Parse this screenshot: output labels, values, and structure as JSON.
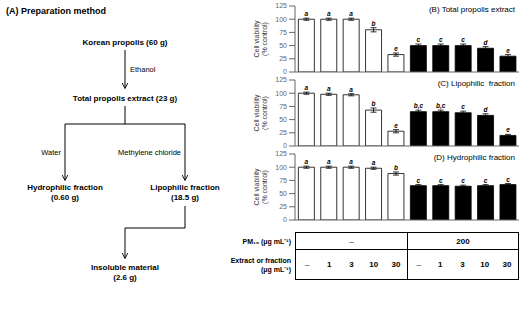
{
  "chart_data": [
    {
      "type": "flowchart",
      "title": "(A) Preparation method",
      "nodes": [
        "Korean propolis (60 g)",
        "Total propolis extract (23 g)",
        "Hydrophilic fraction\n(0.60 g)",
        "Lipophilic fraction\n(18.5 g)",
        "Insoluble material\n(2.6 g)"
      ],
      "edge_labels": [
        "Ethanol",
        "Water",
        "Methylene chloride"
      ]
    },
    {
      "type": "bar",
      "title": "(B) Total propolis extract",
      "ylabel": "Cell viability\n(% control)",
      "categories": [
        null,
        null,
        null,
        null,
        null,
        null,
        null,
        null,
        null,
        null
      ],
      "values": [
        100,
        100,
        100,
        80,
        33,
        50,
        50,
        50,
        45,
        30
      ],
      "errors": [
        2,
        2,
        2,
        4,
        3,
        3,
        3,
        3,
        3,
        3
      ],
      "annotations": [
        "a",
        "a",
        "a",
        "b",
        "e",
        "c",
        "c",
        "c",
        "d",
        "e"
      ],
      "colors": [
        "#ffffff",
        "#ffffff",
        "#ffffff",
        "#ffffff",
        "#ffffff",
        "#000000",
        "#000000",
        "#000000",
        "#000000",
        "#000000"
      ],
      "ylim": [
        0,
        125
      ],
      "yticks": [
        0,
        25,
        50,
        75,
        100,
        125
      ],
      "grid": false
    },
    {
      "type": "bar",
      "title": "(C) Lipophilic  fraction",
      "ylabel": "Cell viability\n(% control)",
      "categories": [
        null,
        null,
        null,
        null,
        null,
        null,
        null,
        null,
        null,
        null
      ],
      "values": [
        100,
        98,
        97,
        68,
        28,
        65,
        65,
        63,
        58,
        20
      ],
      "errors": [
        2,
        2,
        2,
        4,
        3,
        3,
        3,
        3,
        3,
        2
      ],
      "annotations": [
        "a",
        "a",
        "a",
        "b",
        "e",
        "b,c",
        "b,c",
        "c",
        "d",
        "e"
      ],
      "colors": [
        "#ffffff",
        "#ffffff",
        "#ffffff",
        "#ffffff",
        "#ffffff",
        "#000000",
        "#000000",
        "#000000",
        "#000000",
        "#000000"
      ],
      "ylim": [
        0,
        125
      ],
      "yticks": [
        0,
        25,
        50,
        75,
        100,
        125
      ],
      "grid": false
    },
    {
      "type": "bar",
      "title": "(D) Hydrophilic fraction",
      "ylabel": "Cell viability\n(% control)",
      "categories": [
        null,
        null,
        null,
        null,
        null,
        null,
        null,
        null,
        null,
        null
      ],
      "values": [
        100,
        100,
        100,
        98,
        88,
        65,
        65,
        64,
        65,
        67
      ],
      "errors": [
        2,
        2,
        2,
        2,
        3,
        2,
        2,
        2,
        2,
        2
      ],
      "annotations": [
        "a",
        "a",
        "a",
        "a",
        "b",
        "c",
        "c",
        "c",
        "c",
        "c"
      ],
      "colors": [
        "#ffffff",
        "#ffffff",
        "#ffffff",
        "#ffffff",
        "#ffffff",
        "#000000",
        "#000000",
        "#000000",
        "#000000",
        "#000000"
      ],
      "ylim": [
        0,
        125
      ],
      "yticks": [
        0,
        25,
        50,
        75,
        100,
        125
      ],
      "grid": false
    },
    {
      "type": "table",
      "rows": [
        {
          "label": "PM₁₀ (μg mL⁻¹)",
          "cells": [
            "–",
            "200"
          ]
        },
        {
          "label": "Extract or fraction\n(μg mL⁻¹)",
          "cells": [
            "–",
            "1",
            "3",
            "10",
            "30",
            "–",
            "1",
            "3",
            "10",
            "30"
          ]
        }
      ]
    }
  ]
}
